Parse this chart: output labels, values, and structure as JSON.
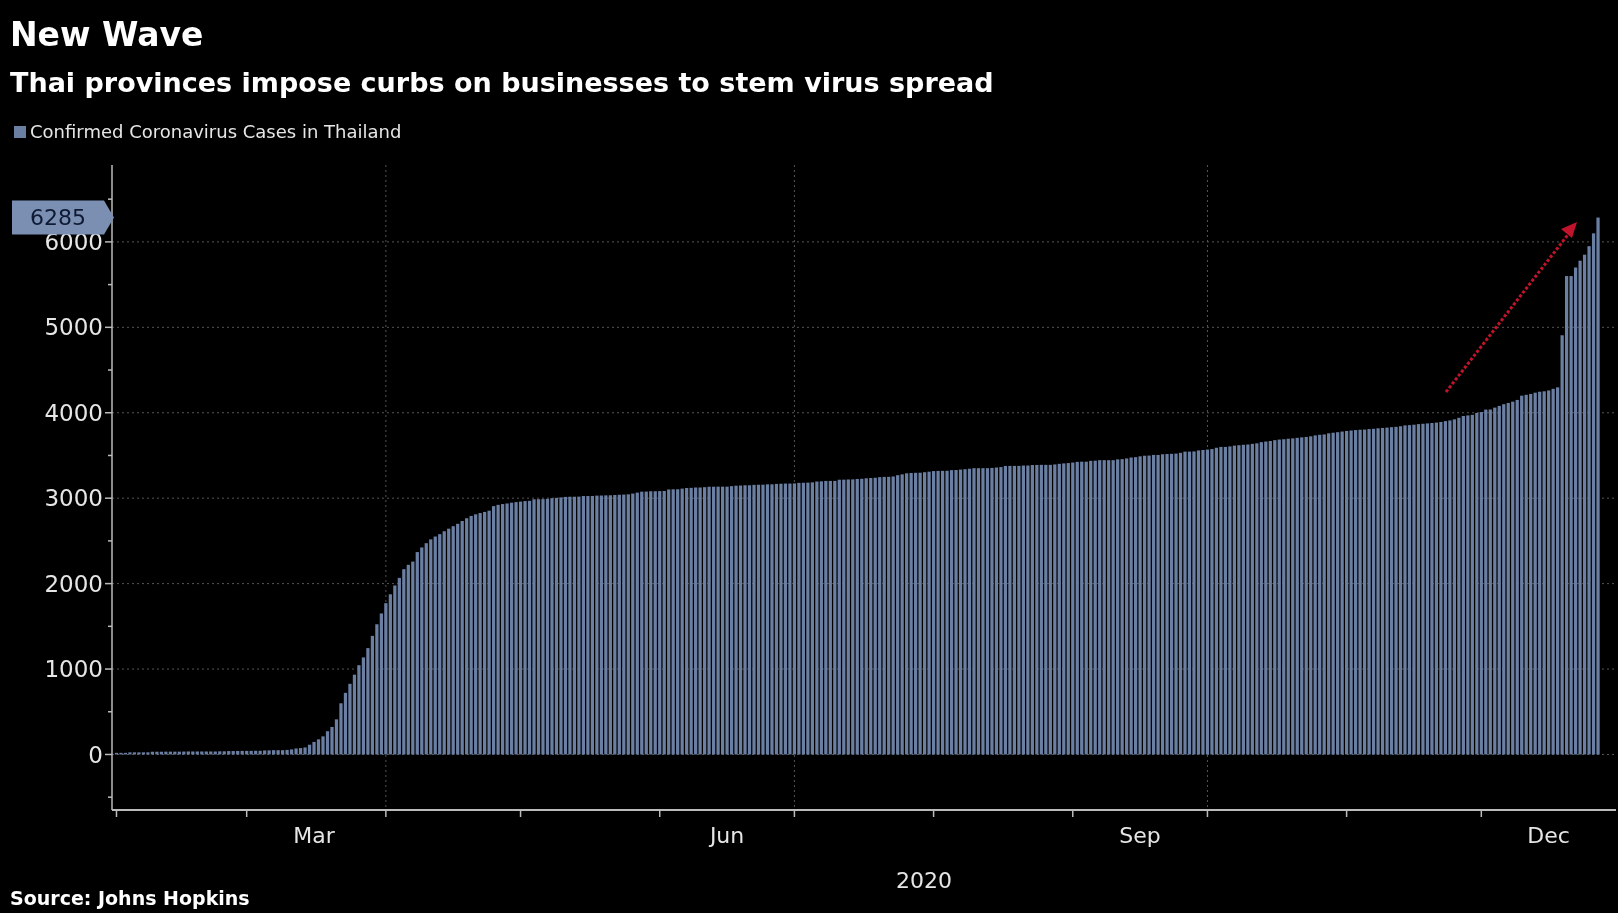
{
  "chart_data": {
    "type": "bar",
    "title": "New Wave",
    "subtitle": "Thai provinces impose curbs on businesses to stem virus spread",
    "xlabel": "2020",
    "annotations": [
      "6285",
      "Source: Johns Hopkins"
    ],
    "legend": "top left",
    "grid": "y",
    "ylim": [
      -650,
      6900
    ],
    "yticks": [
      {
        "value": -500,
        "label": null
      },
      0,
      {
        "value": 500,
        "label": null
      },
      1000,
      {
        "value": 1500,
        "label": null
      },
      2000,
      {
        "value": 2500,
        "label": null
      },
      3000,
      {
        "value": 3500,
        "label": null
      },
      4000,
      {
        "value": 4500,
        "label": null
      },
      5000,
      {
        "value": 5500,
        "label": null
      },
      6000,
      {
        "value": 6500,
        "label": null
      }
    ],
    "xlim": [
      "2020-01-31",
      "2020-12-31"
    ],
    "xticks": [
      {
        "value": "2020-02-01",
        "label": null
      },
      {
        "value": "2020-03-01",
        "label": null
      },
      {
        "value": "2020-03-16",
        "label": "Mar"
      },
      {
        "value": "2020-04-01",
        "label": null
      },
      {
        "value": "2020-05-01",
        "label": null
      },
      {
        "value": "2020-06-01",
        "label": null
      },
      {
        "value": "2020-06-16",
        "label": "Jun"
      },
      {
        "value": "2020-07-01",
        "label": null
      },
      {
        "value": "2020-08-01",
        "label": null
      },
      {
        "value": "2020-09-01",
        "label": null
      },
      {
        "value": "2020-09-16",
        "label": "Sep"
      },
      {
        "value": "2020-10-01",
        "label": null
      },
      {
        "value": "2020-11-01",
        "label": null
      },
      {
        "value": "2020-12-01",
        "label": null
      },
      {
        "value": "2020-12-16",
        "label": "Dec"
      }
    ],
    "ref_lines": [
      {
        "axis": "x",
        "value": "2020-04-01",
        "line_style": "dotted",
        "color": "#555555"
      },
      {
        "axis": "x",
        "value": "2020-07-01",
        "line_style": "dotted",
        "color": "#555555"
      },
      {
        "axis": "x",
        "value": "2020-10-01",
        "line_style": "dotted",
        "color": "#555555"
      }
    ],
    "series": [
      {
        "name": "Confirmed Coronavirus Cases in Thailand",
        "color": "#6b7fa3",
        "x": [
          "2020-02-01",
          "2020-02-02",
          "2020-02-03",
          "2020-02-04",
          "2020-02-05",
          "2020-02-06",
          "2020-02-07",
          "2020-02-08",
          "2020-02-09",
          "2020-02-10",
          "2020-02-11",
          "2020-02-12",
          "2020-02-13",
          "2020-02-14",
          "2020-02-15",
          "2020-02-16",
          "2020-02-17",
          "2020-02-18",
          "2020-02-19",
          "2020-02-20",
          "2020-02-21",
          "2020-02-22",
          "2020-02-23",
          "2020-02-24",
          "2020-02-25",
          "2020-02-26",
          "2020-02-27",
          "2020-02-28",
          "2020-02-29",
          "2020-03-01",
          "2020-03-02",
          "2020-03-03",
          "2020-03-04",
          "2020-03-05",
          "2020-03-06",
          "2020-03-07",
          "2020-03-08",
          "2020-03-09",
          "2020-03-10",
          "2020-03-11",
          "2020-03-12",
          "2020-03-13",
          "2020-03-14",
          "2020-03-15",
          "2020-03-16",
          "2020-03-17",
          "2020-03-18",
          "2020-03-19",
          "2020-03-20",
          "2020-03-21",
          "2020-03-22",
          "2020-03-23",
          "2020-03-24",
          "2020-03-25",
          "2020-03-26",
          "2020-03-27",
          "2020-03-28",
          "2020-03-29",
          "2020-03-30",
          "2020-03-31",
          "2020-04-01",
          "2020-04-02",
          "2020-04-03",
          "2020-04-04",
          "2020-04-05",
          "2020-04-06",
          "2020-04-07",
          "2020-04-08",
          "2020-04-09",
          "2020-04-10",
          "2020-04-11",
          "2020-04-12",
          "2020-04-13",
          "2020-04-14",
          "2020-04-15",
          "2020-04-16",
          "2020-04-17",
          "2020-04-18",
          "2020-04-19",
          "2020-04-20",
          "2020-04-21",
          "2020-04-22",
          "2020-04-23",
          "2020-04-24",
          "2020-04-25",
          "2020-04-26",
          "2020-04-27",
          "2020-04-28",
          "2020-04-29",
          "2020-04-30",
          "2020-05-01",
          "2020-05-02",
          "2020-05-03",
          "2020-05-04",
          "2020-05-05",
          "2020-05-06",
          "2020-05-07",
          "2020-05-08",
          "2020-05-09",
          "2020-05-10",
          "2020-05-11",
          "2020-05-12",
          "2020-05-13",
          "2020-05-14",
          "2020-05-15",
          "2020-05-16",
          "2020-05-17",
          "2020-05-18",
          "2020-05-19",
          "2020-05-20",
          "2020-05-21",
          "2020-05-22",
          "2020-05-23",
          "2020-05-24",
          "2020-05-25",
          "2020-05-26",
          "2020-05-27",
          "2020-05-28",
          "2020-05-29",
          "2020-05-30",
          "2020-05-31",
          "2020-06-01",
          "2020-06-02",
          "2020-06-03",
          "2020-06-04",
          "2020-06-05",
          "2020-06-06",
          "2020-06-07",
          "2020-06-08",
          "2020-06-09",
          "2020-06-10",
          "2020-06-11",
          "2020-06-12",
          "2020-06-13",
          "2020-06-14",
          "2020-06-15",
          "2020-06-16",
          "2020-06-17",
          "2020-06-18",
          "2020-06-19",
          "2020-06-20",
          "2020-06-21",
          "2020-06-22",
          "2020-06-23",
          "2020-06-24",
          "2020-06-25",
          "2020-06-26",
          "2020-06-27",
          "2020-06-28",
          "2020-06-29",
          "2020-06-30",
          "2020-07-01",
          "2020-07-02",
          "2020-07-03",
          "2020-07-04",
          "2020-07-05",
          "2020-07-06",
          "2020-07-07",
          "2020-07-08",
          "2020-07-09",
          "2020-07-10",
          "2020-07-11",
          "2020-07-12",
          "2020-07-13",
          "2020-07-14",
          "2020-07-15",
          "2020-07-16",
          "2020-07-17",
          "2020-07-18",
          "2020-07-19",
          "2020-07-20",
          "2020-07-21",
          "2020-07-22",
          "2020-07-23",
          "2020-07-24",
          "2020-07-25",
          "2020-07-26",
          "2020-07-27",
          "2020-07-28",
          "2020-07-29",
          "2020-07-30",
          "2020-07-31",
          "2020-08-01",
          "2020-08-02",
          "2020-08-03",
          "2020-08-04",
          "2020-08-05",
          "2020-08-06",
          "2020-08-07",
          "2020-08-08",
          "2020-08-09",
          "2020-08-10",
          "2020-08-11",
          "2020-08-12",
          "2020-08-13",
          "2020-08-14",
          "2020-08-15",
          "2020-08-16",
          "2020-08-17",
          "2020-08-18",
          "2020-08-19",
          "2020-08-20",
          "2020-08-21",
          "2020-08-22",
          "2020-08-23",
          "2020-08-24",
          "2020-08-25",
          "2020-08-26",
          "2020-08-27",
          "2020-08-28",
          "2020-08-29",
          "2020-08-30",
          "2020-08-31",
          "2020-09-01",
          "2020-09-02",
          "2020-09-03",
          "2020-09-04",
          "2020-09-05",
          "2020-09-06",
          "2020-09-07",
          "2020-09-08",
          "2020-09-09",
          "2020-09-10",
          "2020-09-11",
          "2020-09-12",
          "2020-09-13",
          "2020-09-14",
          "2020-09-15",
          "2020-09-16",
          "2020-09-17",
          "2020-09-18",
          "2020-09-19",
          "2020-09-20",
          "2020-09-21",
          "2020-09-22",
          "2020-09-23",
          "2020-09-24",
          "2020-09-25",
          "2020-09-26",
          "2020-09-27",
          "2020-09-28",
          "2020-09-29",
          "2020-09-30",
          "2020-10-01",
          "2020-10-02",
          "2020-10-03",
          "2020-10-04",
          "2020-10-05",
          "2020-10-06",
          "2020-10-07",
          "2020-10-08",
          "2020-10-09",
          "2020-10-10",
          "2020-10-11",
          "2020-10-12",
          "2020-10-13",
          "2020-10-14",
          "2020-10-15",
          "2020-10-16",
          "2020-10-17",
          "2020-10-18",
          "2020-10-19",
          "2020-10-20",
          "2020-10-21",
          "2020-10-22",
          "2020-10-23",
          "2020-10-24",
          "2020-10-25",
          "2020-10-26",
          "2020-10-27",
          "2020-10-28",
          "2020-10-29",
          "2020-10-30",
          "2020-10-31",
          "2020-11-01",
          "2020-11-02",
          "2020-11-03",
          "2020-11-04",
          "2020-11-05",
          "2020-11-06",
          "2020-11-07",
          "2020-11-08",
          "2020-11-09",
          "2020-11-10",
          "2020-11-11",
          "2020-11-12",
          "2020-11-13",
          "2020-11-14",
          "2020-11-15",
          "2020-11-16",
          "2020-11-17",
          "2020-11-18",
          "2020-11-19",
          "2020-11-20",
          "2020-11-21",
          "2020-11-22",
          "2020-11-23",
          "2020-11-24",
          "2020-11-25",
          "2020-11-26",
          "2020-11-27",
          "2020-11-28",
          "2020-11-29",
          "2020-11-30",
          "2020-12-01",
          "2020-12-02",
          "2020-12-03",
          "2020-12-04",
          "2020-12-05",
          "2020-12-06",
          "2020-12-07",
          "2020-12-08",
          "2020-12-09",
          "2020-12-10",
          "2020-12-11",
          "2020-12-12",
          "2020-12-13",
          "2020-12-14",
          "2020-12-15",
          "2020-12-16",
          "2020-12-17",
          "2020-12-18",
          "2020-12-19",
          "2020-12-20",
          "2020-12-21",
          "2020-12-22",
          "2020-12-23",
          "2020-12-24",
          "2020-12-25",
          "2020-12-26",
          "2020-12-27"
        ],
        "values": [
          19,
          19,
          19,
          25,
          25,
          25,
          25,
          25,
          32,
          32,
          32,
          33,
          33,
          33,
          33,
          34,
          35,
          35,
          35,
          35,
          35,
          35,
          35,
          37,
          37,
          40,
          40,
          41,
          42,
          42,
          42,
          43,
          43,
          47,
          48,
          50,
          50,
          50,
          53,
          59,
          70,
          75,
          82,
          114,
          147,
          177,
          212,
          272,
          322,
          411,
          599,
          721,
          827,
          934,
          1045,
          1136,
          1245,
          1388,
          1524,
          1651,
          1771,
          1875,
          1978,
          2067,
          2169,
          2220,
          2258,
          2369,
          2423,
          2473,
          2518,
          2551,
          2579,
          2613,
          2643,
          2672,
          2700,
          2733,
          2765,
          2792,
          2811,
          2826,
          2839,
          2854,
          2907,
          2922,
          2931,
          2938,
          2947,
          2954,
          2960,
          2966,
          2969,
          2987,
          2988,
          2989,
          2992,
          3000,
          3004,
          3009,
          3015,
          3017,
          3017,
          3018,
          3025,
          3025,
          3026,
          3030,
          3031,
          3033,
          3034,
          3037,
          3040,
          3042,
          3045,
          3054,
          3065,
          3076,
          3077,
          3081,
          3081,
          3083,
          3084,
          3102,
          3104,
          3104,
          3112,
          3119,
          3121,
          3125,
          3125,
          3129,
          3134,
          3134,
          3135,
          3135,
          3135,
          3141,
          3146,
          3148,
          3151,
          3151,
          3156,
          3157,
          3158,
          3162,
          3162,
          3167,
          3169,
          3171,
          3171,
          3173,
          3179,
          3180,
          3182,
          3185,
          3195,
          3197,
          3202,
          3202,
          3202,
          3216,
          3217,
          3219,
          3220,
          3225,
          3227,
          3233,
          3236,
          3239,
          3246,
          3249,
          3250,
          3254,
          3269,
          3279,
          3291,
          3295,
          3297,
          3298,
          3304,
          3310,
          3317,
          3319,
          3320,
          3321,
          3328,
          3330,
          3335,
          3339,
          3345,
          3351,
          3351,
          3351,
          3351,
          3354,
          3359,
          3364,
          3377,
          3378,
          3378,
          3378,
          3382,
          3382,
          3388,
          3389,
          3390,
          3390,
          3390,
          3395,
          3402,
          3407,
          3411,
          3417,
          3425,
          3427,
          3427,
          3437,
          3439,
          3445,
          3445,
          3445,
          3445,
          3454,
          3457,
          3465,
          3476,
          3480,
          3490,
          3497,
          3499,
          3506,
          3506,
          3514,
          3517,
          3519,
          3522,
          3531,
          3545,
          3545,
          3547,
          3559,
          3564,
          3569,
          3575,
          3590,
          3600,
          3600,
          3606,
          3615,
          3620,
          3625,
          3628,
          3636,
          3642,
          3656,
          3663,
          3669,
          3679,
          3686,
          3690,
          3696,
          3700,
          3706,
          3712,
          3717,
          3724,
          3735,
          3742,
          3746,
          3759,
          3766,
          3772,
          3780,
          3787,
          3792,
          3797,
          3801,
          3803,
          3809,
          3812,
          3818,
          3822,
          3826,
          3831,
          3835,
          3842,
          3852,
          3855,
          3860,
          3867,
          3871,
          3875,
          3880,
          3885,
          3892,
          3902,
          3910,
          3923,
          3941,
          3962,
          3969,
          3975,
          3998,
          4008,
          4037,
          4038,
          4060,
          4080,
          4100,
          4115,
          4130,
          4150,
          4200,
          4210,
          4220,
          4235,
          4246,
          4251,
          4261,
          4280,
          4297,
          4907,
          5600,
          5600,
          5700,
          5780,
          5850,
          5950,
          6100,
          6285
        ]
      }
    ]
  }
}
